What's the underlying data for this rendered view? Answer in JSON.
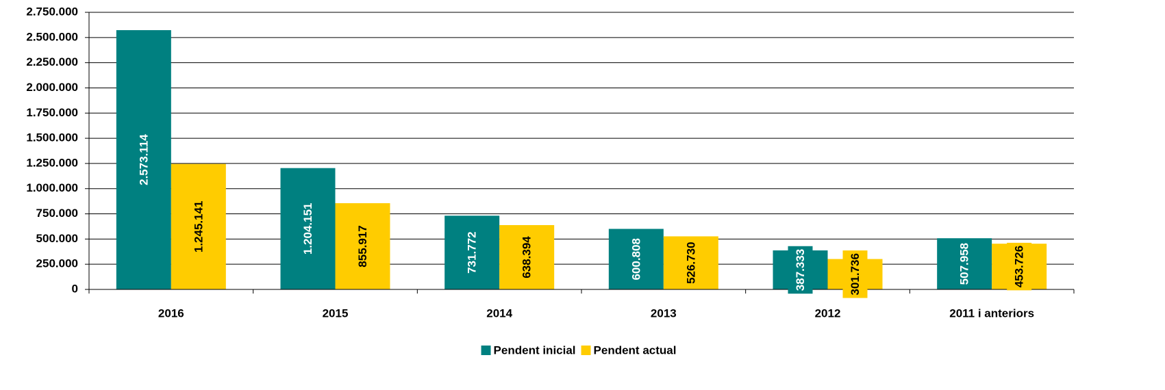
{
  "chart_data": {
    "type": "bar",
    "categories": [
      "2016",
      "2015",
      "2014",
      "2013",
      "2012",
      "2011 i anteriors"
    ],
    "series": [
      {
        "name": "Pendent inicial",
        "color": "#008080",
        "values": [
          2573114,
          1204151,
          731772,
          600808,
          387333,
          507958
        ],
        "value_labels": [
          "2.573.114",
          "1.204.151",
          "731.772",
          "600.808",
          "387.333",
          "507.958"
        ]
      },
      {
        "name": "Pendent actual",
        "color": "#ffcc00",
        "values": [
          1245141,
          855917,
          638394,
          526730,
          301736,
          453726
        ],
        "value_labels": [
          "1.245.141",
          "855.917",
          "638.394",
          "526.730",
          "301.736",
          "453.726"
        ]
      }
    ],
    "ylim": [
      0,
      2750000
    ],
    "yticks": [
      0,
      {
        "value": 250000,
        "label": "250.000"
      },
      {
        "value": 500000,
        "label": "500.000"
      },
      {
        "value": 750000,
        "label": "750.000"
      },
      {
        "value": 1000000,
        "label": "1.000.000"
      },
      {
        "value": 1250000,
        "label": "1.250.000"
      },
      {
        "value": 1500000,
        "label": "1.500.000"
      },
      {
        "value": 1750000,
        "label": "1.750.000"
      },
      {
        "value": 2000000,
        "label": "2.000.000"
      },
      {
        "value": 2250000,
        "label": "2.250.000"
      },
      {
        "value": 2500000,
        "label": "2.500.000"
      },
      {
        "value": 2750000,
        "label": "2.750.000"
      }
    ],
    "grid": true,
    "legend": "bottom"
  }
}
